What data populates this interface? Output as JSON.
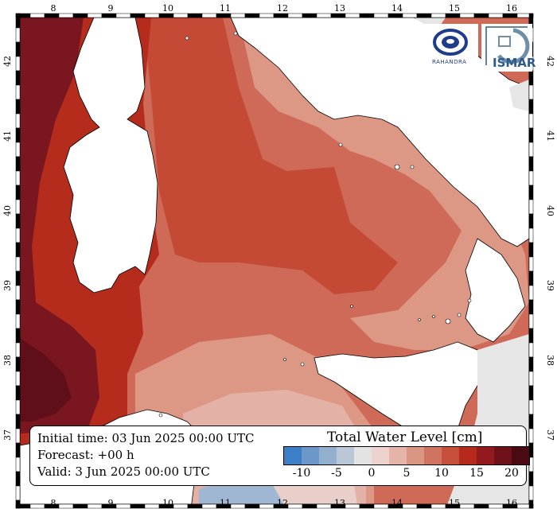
{
  "map": {
    "lon_labels": [
      "8",
      "9",
      "10",
      "11",
      "12",
      "13",
      "14",
      "15",
      "16"
    ],
    "lat_labels": [
      "42",
      "41",
      "40",
      "39",
      "38",
      "37"
    ],
    "colors": {
      "land": "#ffffff",
      "outside_domain": "#e6e6e6",
      "level_0_2": "#e8cfca",
      "level_2_4": "#e4b1a6",
      "level_4_6": "#dd9785",
      "level_8_10": "#cf6a58",
      "level_10_12": "#c44a36",
      "level_12_14": "#b52b1c",
      "level_16_18": "#7a1620",
      "level_18_20": "#5e0f19",
      "level_minus_5": "#9fb7d3"
    }
  },
  "logos": {
    "left_text": "RAHANDRA",
    "right_text": "ISMAR"
  },
  "info": {
    "initial_time": "Initial time: 03 Jun 2025 00:00 UTC",
    "forecast": "Forecast: +00 h",
    "valid": "Valid:  3 Jun 2025 00:00 UTC"
  },
  "legend": {
    "title": "Total Water Level [cm]",
    "colors": [
      "#3c7fc7",
      "#6c98c9",
      "#92afce",
      "#b9c7d6",
      "#e3e3e3",
      "#ecd3cd",
      "#e4b4a8",
      "#db9683",
      "#d07360",
      "#c6503c",
      "#b52a1c",
      "#921a1e",
      "#6e1119",
      "#4a0a12"
    ],
    "tick_labels": [
      "-10",
      "-5",
      "0",
      "5",
      "10",
      "15",
      "20"
    ]
  }
}
